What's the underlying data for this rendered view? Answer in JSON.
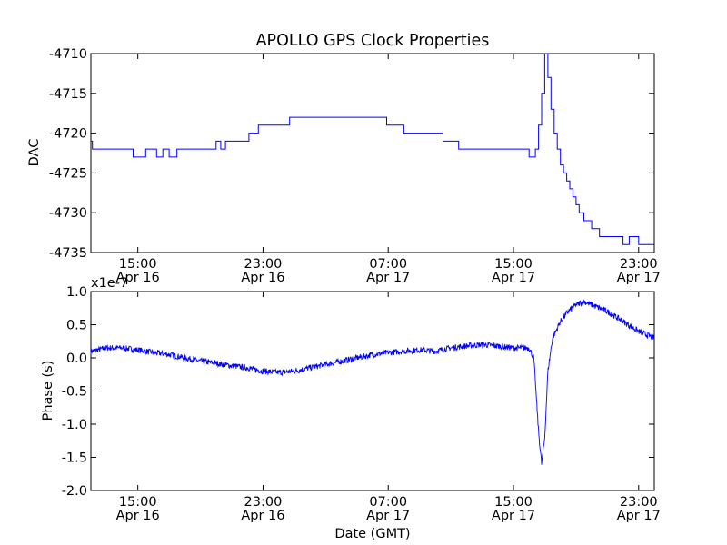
{
  "chart_data": [
    {
      "type": "line",
      "title": "APOLLO GPS Clock Properties",
      "xlabel": "",
      "ylabel": "DAC",
      "ylim": [
        -4735,
        -4710
      ],
      "yticks": [
        "-4710",
        "-4715",
        "-4720",
        "-4725",
        "-4730",
        "-4735"
      ],
      "xlim_hours": [
        0,
        36
      ],
      "xticks": [
        {
          "hour": 3,
          "time": "15:00",
          "date": "Apr 16"
        },
        {
          "hour": 11,
          "time": "23:00",
          "date": "Apr 16"
        },
        {
          "hour": 19,
          "time": "07:00",
          "date": "Apr 17"
        },
        {
          "hour": 27,
          "time": "15:00",
          "date": "Apr 17"
        },
        {
          "hour": 35,
          "time": "23:00",
          "date": "Apr 17"
        }
      ],
      "series": [
        {
          "name": "DAC",
          "color": "#0000ff",
          "step": true,
          "x": [
            0,
            0.1,
            1.0,
            2.7,
            3.5,
            4.2,
            4.6,
            5.0,
            5.5,
            7.5,
            8.0,
            8.3,
            8.6,
            9.5,
            10.1,
            10.7,
            11.5,
            12.7,
            13.3,
            14.5,
            16.0,
            17.5,
            18.9,
            19.4,
            20.0,
            21.0,
            22.5,
            23.5,
            24.0,
            24.5,
            25.0,
            26.0,
            27.0,
            28.0,
            28.4,
            28.6,
            28.8,
            29.0,
            29.2,
            29.4,
            29.6,
            29.8,
            30.0,
            30.2,
            30.4,
            30.6,
            30.8,
            31.0,
            31.2,
            31.5,
            32.0,
            32.5,
            33.0,
            33.5,
            34.0,
            34.4,
            35.0,
            36.0
          ],
          "values": [
            -4721,
            -4722,
            -4722,
            -4723,
            -4722,
            -4723,
            -4722,
            -4723,
            -4722,
            -4722,
            -4721,
            -4722,
            -4721,
            -4721,
            -4720,
            -4719,
            -4719,
            -4718,
            -4718,
            -4718,
            -4718,
            -4718,
            -4719,
            -4719,
            -4720,
            -4720,
            -4721,
            -4722,
            -4722,
            -4722,
            -4722,
            -4722,
            -4722,
            -4723,
            -4722,
            -4719,
            -4715,
            -4710,
            -4713,
            -4717,
            -4720,
            -4722,
            -4724,
            -4725,
            -4726,
            -4727,
            -4728,
            -4729,
            -4730,
            -4731,
            -4732,
            -4733,
            -4733,
            -4733,
            -4734,
            -4733,
            -4734,
            -4734
          ]
        }
      ]
    },
    {
      "type": "line",
      "title": "",
      "xlabel": "Date (GMT)",
      "ylabel": "Phase (s)",
      "y_scale_label": "x1e-7",
      "ylim": [
        -2.0,
        1.0
      ],
      "yticks": [
        "1.0",
        "0.5",
        "0.0",
        "-0.5",
        "-1.0",
        "-1.5",
        "-2.0"
      ],
      "xlim_hours": [
        0,
        36
      ],
      "xticks": [
        {
          "hour": 3,
          "time": "15:00",
          "date": "Apr 16"
        },
        {
          "hour": 11,
          "time": "23:00",
          "date": "Apr 16"
        },
        {
          "hour": 19,
          "time": "07:00",
          "date": "Apr 17"
        },
        {
          "hour": 27,
          "time": "15:00",
          "date": "Apr 17"
        },
        {
          "hour": 35,
          "time": "23:00",
          "date": "Apr 17"
        }
      ],
      "series": [
        {
          "name": "Phase",
          "color": "#0000ff",
          "step": false,
          "noise": 0.045,
          "x": [
            0,
            1,
            2,
            3,
            4,
            5,
            6,
            7,
            8,
            9,
            10,
            11,
            12,
            13,
            14,
            15,
            16,
            17,
            18,
            19,
            20,
            21,
            22,
            23,
            24,
            25,
            26,
            27,
            28,
            28.3,
            28.6,
            28.8,
            29.0,
            29.2,
            29.5,
            30.0,
            30.5,
            31.0,
            31.5,
            32.0,
            33.0,
            34.0,
            35.0,
            36.0
          ],
          "values": [
            0.1,
            0.15,
            0.15,
            0.12,
            0.08,
            0.05,
            0.0,
            -0.05,
            -0.08,
            -0.12,
            -0.15,
            -0.2,
            -0.22,
            -0.2,
            -0.15,
            -0.1,
            -0.05,
            0.0,
            0.05,
            0.08,
            0.1,
            0.12,
            0.1,
            0.15,
            0.18,
            0.2,
            0.18,
            0.15,
            0.15,
            0.0,
            -1.1,
            -1.6,
            -1.2,
            -0.2,
            0.3,
            0.55,
            0.7,
            0.8,
            0.85,
            0.8,
            0.7,
            0.55,
            0.4,
            0.3
          ]
        }
      ]
    }
  ]
}
